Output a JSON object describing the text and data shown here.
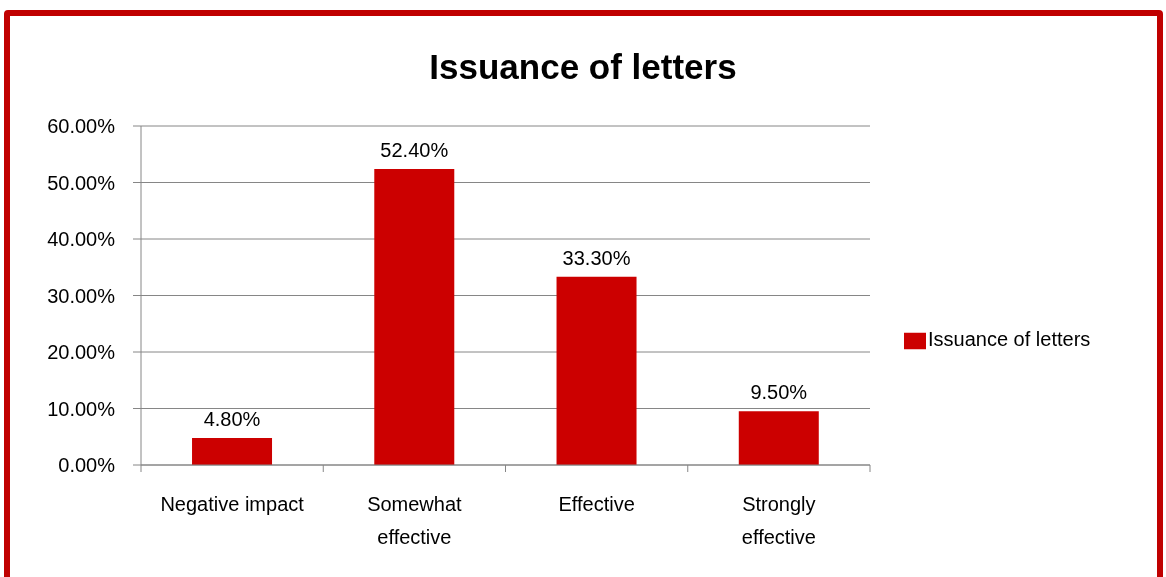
{
  "chart_data": {
    "type": "bar",
    "title": "Issuance of letters",
    "categories": [
      "Negative impact",
      "Somewhat effective",
      "Effective",
      "Strongly effective"
    ],
    "series": [
      {
        "name": "Issuance of letters",
        "color": "#cc0000",
        "values": [
          4.8,
          52.4,
          33.3,
          9.5
        ],
        "value_labels": [
          "4.80%",
          "52.40%",
          "33.30%",
          "9.50%"
        ]
      }
    ],
    "ylim": [
      0,
      60
    ],
    "yticks": [
      {
        "value": 0,
        "label": "0.00%"
      },
      {
        "value": 10,
        "label": "10.00%"
      },
      {
        "value": 20,
        "label": "20.00%"
      },
      {
        "value": 30,
        "label": "30.00%"
      },
      {
        "value": 40,
        "label": "40.00%"
      },
      {
        "value": 50,
        "label": "50.00%"
      },
      {
        "value": 60,
        "label": "60.00%"
      }
    ],
    "grid": "y",
    "legend": "right"
  }
}
